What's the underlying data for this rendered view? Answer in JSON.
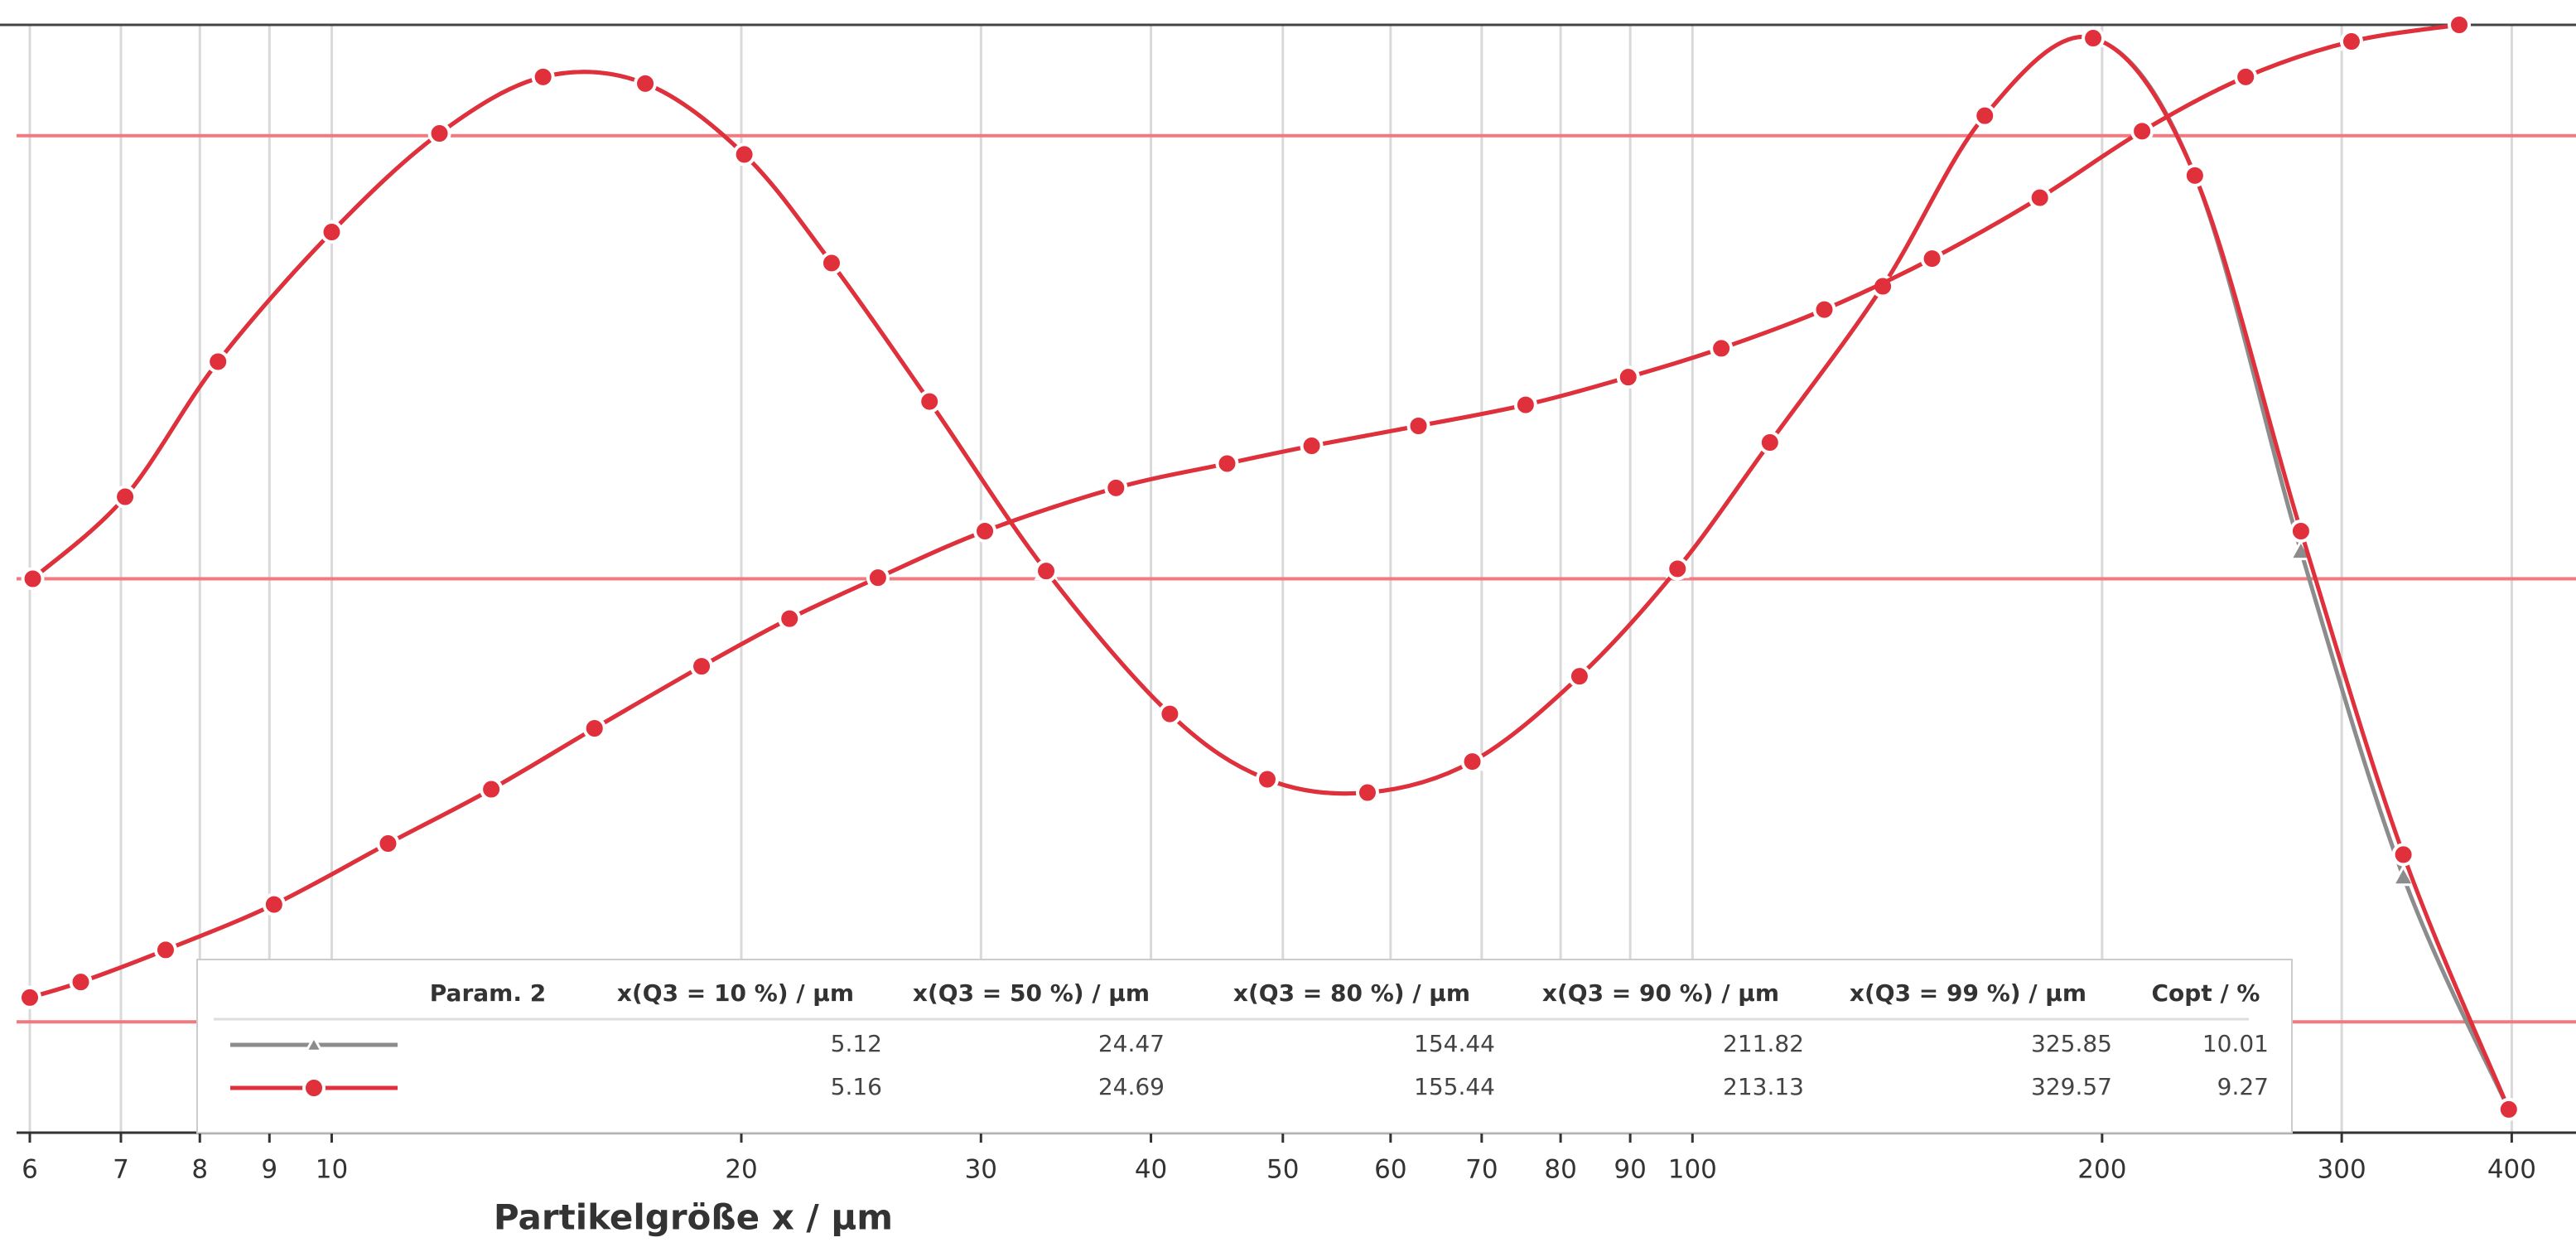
{
  "chart_data": {
    "type": "line",
    "xlabel": "Partikelgröße x / µm",
    "xscale": "log",
    "xlim": [
      6,
      430
    ],
    "xticks": [
      6,
      7,
      8,
      9,
      10,
      20,
      30,
      40,
      50,
      60,
      70,
      80,
      90,
      100,
      200,
      300,
      400
    ],
    "ylim": [
      0,
      100
    ],
    "reference_lines": [
      10,
      50,
      90
    ],
    "reference_color": "#f07a80",
    "grid": true,
    "series": [
      {
        "color": "#8c8c8c",
        "marker": "triangle",
        "x": [
          6.03,
          7.05,
          8.25,
          10.0,
          12.0,
          14.3,
          17.0,
          20.1,
          23.3,
          27.5,
          33.5,
          41.3,
          48.7,
          57.7,
          68.9,
          82.6,
          97.5,
          114,
          138,
          164,
          197,
          234,
          280,
          333,
          398
        ],
        "values": [
          50.0,
          57.4,
          69.6,
          81.3,
          90.2,
          95.3,
          94.7,
          88.3,
          78.5,
          66.0,
          50.7,
          37.8,
          31.9,
          30.7,
          33.5,
          41.2,
          50.9,
          62.3,
          76.4,
          91.8,
          98.8,
          86.4,
          52.5,
          23.1,
          2.1
        ]
      },
      {
        "color": "#8c8c8c",
        "marker": "triangle",
        "x": [
          6.0,
          6.54,
          7.55,
          9.07,
          11.0,
          13.1,
          15.6,
          18.7,
          21.7,
          25.2,
          30.2,
          37.7,
          45.5,
          52.5,
          62.9,
          75.4,
          89.7,
          105,
          125,
          150,
          180,
          214,
          255,
          305,
          366
        ],
        "values": [
          12.2,
          13.6,
          16.5,
          20.6,
          26.1,
          31.0,
          36.5,
          42.1,
          46.4,
          50.1,
          54.3,
          58.2,
          60.4,
          62.0,
          63.8,
          65.7,
          68.2,
          70.8,
          74.3,
          78.9,
          84.4,
          90.4,
          95.3,
          98.5,
          100
        ]
      },
      {
        "color": "#e0303c",
        "marker": "circle",
        "x": [
          6.03,
          7.05,
          8.25,
          10.0,
          12.0,
          14.3,
          17.0,
          20.1,
          23.3,
          27.5,
          33.5,
          41.3,
          48.7,
          57.7,
          68.9,
          82.6,
          97.5,
          114,
          138,
          164,
          197,
          234,
          280,
          333,
          398
        ],
        "values": [
          50.0,
          57.4,
          69.6,
          81.3,
          90.2,
          95.3,
          94.7,
          88.3,
          78.5,
          66.0,
          50.7,
          37.8,
          31.9,
          30.7,
          33.5,
          41.2,
          50.9,
          62.3,
          76.4,
          91.8,
          98.8,
          86.4,
          54.3,
          25.1,
          2.1
        ]
      },
      {
        "color": "#e0303c",
        "marker": "circle",
        "x": [
          6.0,
          6.54,
          7.55,
          9.07,
          11.0,
          13.1,
          15.6,
          18.7,
          21.7,
          25.2,
          30.2,
          37.7,
          45.5,
          52.5,
          62.9,
          75.4,
          89.7,
          105,
          125,
          150,
          180,
          214,
          255,
          305,
          366
        ],
        "values": [
          12.2,
          13.6,
          16.5,
          20.6,
          26.1,
          31.0,
          36.5,
          42.1,
          46.4,
          50.1,
          54.3,
          58.2,
          60.4,
          62.0,
          63.8,
          65.7,
          68.2,
          70.8,
          74.3,
          78.9,
          84.4,
          90.4,
          95.3,
          98.5,
          100
        ]
      }
    ],
    "legend_table": {
      "header": [
        "Param. 2",
        "x(Q3 = 10 %) / µm",
        "x(Q3 = 50 %) / µm",
        "x(Q3 = 80 %) / µm",
        "x(Q3 = 90 %) / µm",
        "x(Q3 = 99 %) / µm",
        "Copt / %"
      ],
      "rows": [
        {
          "color": "#8c8c8c",
          "marker": "triangle",
          "cells": [
            5.12,
            24.47,
            154.44,
            211.82,
            325.85,
            10.01
          ]
        },
        {
          "color": "#e0303c",
          "marker": "circle",
          "cells": [
            5.16,
            24.69,
            155.44,
            213.13,
            329.57,
            9.27
          ]
        }
      ]
    }
  }
}
